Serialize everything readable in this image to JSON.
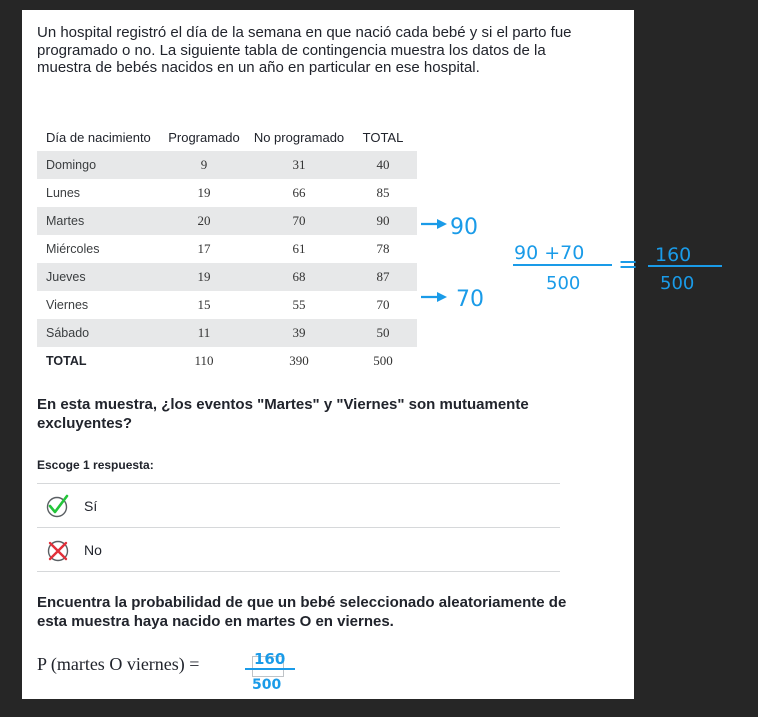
{
  "prompt": "Un hospital registró el día de la semana en que nació cada bebé y si el parto fue programado o no. La siguiente tabla de contingencia muestra los datos de la muestra de bebés nacidos en un año en particular en ese hospital.",
  "table": {
    "headers": [
      "Día de nacimiento",
      "Programado",
      "No programado",
      "TOTAL"
    ],
    "rows": [
      {
        "day": "Domingo",
        "prog": "9",
        "noprog": "31",
        "total": "40"
      },
      {
        "day": "Lunes",
        "prog": "19",
        "noprog": "66",
        "total": "85"
      },
      {
        "day": "Martes",
        "prog": "20",
        "noprog": "70",
        "total": "90"
      },
      {
        "day": "Miércoles",
        "prog": "17",
        "noprog": "61",
        "total": "78"
      },
      {
        "day": "Jueves",
        "prog": "19",
        "noprog": "68",
        "total": "87"
      },
      {
        "day": "Viernes",
        "prog": "15",
        "noprog": "55",
        "total": "70"
      },
      {
        "day": "Sábado",
        "prog": "11",
        "noprog": "39",
        "total": "50"
      },
      {
        "day": "TOTAL",
        "prog": "110",
        "noprog": "390",
        "total": "500"
      }
    ]
  },
  "question": "En esta muestra, ¿los eventos \"Martes\" y \"Viernes\" son mutuamente excluyentes?",
  "choose_label": "Escoge 1 respuesta:",
  "choices": [
    {
      "label": "Sí",
      "state": "correct"
    },
    {
      "label": "No",
      "state": "incorrect"
    }
  ],
  "question2": "Encuentra la probabilidad de que un bebé seleccionado aleatoriamente de esta muestra haya nacido en martes O en viernes.",
  "formula": "P (martes O viernes) =",
  "annotations": {
    "arrow_martes": "90",
    "arrow_viernes": "70",
    "frac1_num": "90 +70",
    "frac1_den": "500",
    "equals": "=",
    "frac2_num": "160",
    "frac2_den": "500",
    "answer_num": "160",
    "answer_den": "500"
  },
  "colors": {
    "ink": "#1a9be8",
    "check": "#23c53a",
    "cross": "#e2303a"
  }
}
